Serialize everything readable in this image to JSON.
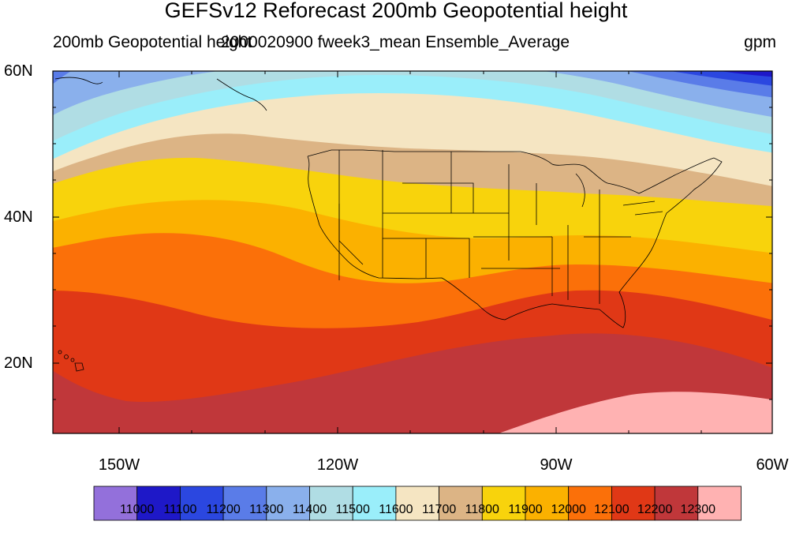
{
  "title": "GEFSv12 Reforecast 200mb Geopotential height",
  "subtitle_left": "200mb Geopotential height",
  "subtitle_center": "2000020900 fweek3_mean Ensemble_Average",
  "units": "gpm",
  "map": {
    "lat_range": [
      10,
      60
    ],
    "lon_range": [
      -160,
      -60
    ],
    "lat_ticks": [
      "60N",
      "40N",
      "20N"
    ],
    "lon_ticks": [
      "150W",
      "120W",
      "90W",
      "60W"
    ],
    "region": "Continental United States, North Pacific, Hawaii, Gulf of Mexico"
  },
  "contour_bands": [
    {
      "value": "11000",
      "color": "#9370db"
    },
    {
      "value": "11100",
      "color": "#1e18c8"
    },
    {
      "value": "11200",
      "color": "#2b47e0"
    },
    {
      "value": "11300",
      "color": "#5a7ce8"
    },
    {
      "value": "11400",
      "color": "#8ab0ec"
    },
    {
      "value": "11500",
      "color": "#b0dde4"
    },
    {
      "value": "11600",
      "color": "#9aeefa"
    },
    {
      "value": "11700",
      "color": "#f5e5c2"
    },
    {
      "value": "11800",
      "color": "#dcb485"
    },
    {
      "value": "11900",
      "color": "#f8d30c"
    },
    {
      "value": "12000",
      "color": "#fbb100"
    },
    {
      "value": "12100",
      "color": "#fb7009"
    },
    {
      "value": "12200",
      "color": "#e03816"
    },
    {
      "value": "12300",
      "color": "#c0373a"
    }
  ],
  "colorbar_end_color": "#ffb2b2"
}
